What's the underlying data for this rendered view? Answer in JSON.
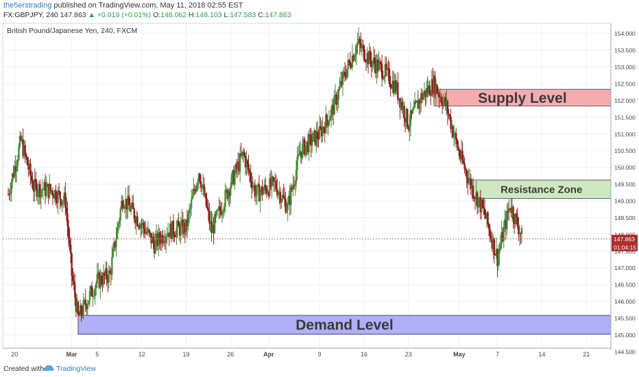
{
  "header": {
    "author": "the5erstrading",
    "published_text": "published on TradingView.com, May 11, 2018 02:55 EST",
    "symbol": "FX:GBPJPY, 240",
    "last": "147.863",
    "change": "+0.019 (+0.01%)",
    "open_label": "O:",
    "open": "148.062",
    "high_label": "H:",
    "high": "148.103",
    "low_label": "L:",
    "low": "147.583",
    "close_label": "C:",
    "close": "147.863"
  },
  "footer": {
    "created_with": "Created with",
    "brand": "TradingView"
  },
  "colors": {
    "up": "#4a8a3a",
    "down": "#8b1e1e",
    "supply_fill": "#f4a3a6",
    "resistance_fill": "#c9e5b9",
    "demand_fill": "#a9a6f5",
    "price_line": "#e0705c"
  },
  "chart_data": {
    "type": "candlestick",
    "title": "British Pound/Japanese Yen, 240, FXCM",
    "ylim": [
      144.6,
      154.3
    ],
    "y_ticks": [
      "154.000",
      "153.500",
      "153.000",
      "152.500",
      "152.000",
      "151.500",
      "151.000",
      "150.500",
      "150.000",
      "149.500",
      "149.000",
      "148.500",
      "148.000",
      "147.500",
      "147.000",
      "146.500",
      "146.000",
      "145.500",
      "145.000",
      "144.500"
    ],
    "x_ticks": [
      "20",
      "Mar",
      "5",
      "12",
      "19",
      "26",
      "Apr",
      "9",
      "16",
      "23",
      "May",
      "7",
      "14",
      "21"
    ],
    "current_price": "147.863",
    "countdown": "01:04:15",
    "zones": [
      {
        "label": "Supply Level",
        "top": 152.33,
        "bottom": 151.83,
        "x_start": "Apr 27",
        "x_end": "end"
      },
      {
        "label": "Resistance Zone",
        "top": 149.62,
        "bottom": 149.07,
        "x_start": "May 3",
        "x_end": "end"
      },
      {
        "label": "Demand Level",
        "top": 145.58,
        "bottom": 145.02,
        "x_start": "Mar 2",
        "x_end": "end"
      }
    ],
    "price_path": [
      {
        "date": "Feb 19",
        "price": 149.2
      },
      {
        "date": "Feb 21",
        "price": 150.8
      },
      {
        "date": "Feb 23",
        "price": 149.4
      },
      {
        "date": "Feb 26",
        "price": 149.3
      },
      {
        "date": "Feb 28",
        "price": 149.0
      },
      {
        "date": "Mar 1",
        "price": 146.8
      },
      {
        "date": "Mar 2",
        "price": 145.5
      },
      {
        "date": "Mar 5",
        "price": 146.6
      },
      {
        "date": "Mar 7",
        "price": 146.8
      },
      {
        "date": "Mar 9",
        "price": 149.1
      },
      {
        "date": "Mar 12",
        "price": 148.3
      },
      {
        "date": "Mar 14",
        "price": 147.7
      },
      {
        "date": "Mar 16",
        "price": 148.1
      },
      {
        "date": "Mar 19",
        "price": 148.2
      },
      {
        "date": "Mar 21",
        "price": 149.9
      },
      {
        "date": "Mar 23",
        "price": 148.1
      },
      {
        "date": "Mar 26",
        "price": 149.5
      },
      {
        "date": "Mar 28",
        "price": 150.4
      },
      {
        "date": "Mar 30",
        "price": 149.2
      },
      {
        "date": "Apr 2",
        "price": 149.5
      },
      {
        "date": "Apr 4",
        "price": 148.8
      },
      {
        "date": "Apr 6",
        "price": 150.5
      },
      {
        "date": "Apr 9",
        "price": 151.0
      },
      {
        "date": "Apr 11",
        "price": 151.7
      },
      {
        "date": "Apr 13",
        "price": 152.8
      },
      {
        "date": "Apr 15",
        "price": 153.7
      },
      {
        "date": "Apr 17",
        "price": 153.2
      },
      {
        "date": "Apr 19",
        "price": 152.9
      },
      {
        "date": "Apr 21",
        "price": 152.4
      },
      {
        "date": "Apr 23",
        "price": 151.3
      },
      {
        "date": "Apr 25",
        "price": 152.1
      },
      {
        "date": "Apr 27",
        "price": 152.5
      },
      {
        "date": "Apr 29",
        "price": 151.8
      },
      {
        "date": "May 1",
        "price": 150.4
      },
      {
        "date": "May 3",
        "price": 149.4
      },
      {
        "date": "May 5",
        "price": 148.6
      },
      {
        "date": "May 7",
        "price": 147.3
      },
      {
        "date": "May 9",
        "price": 148.9
      },
      {
        "date": "May 11",
        "price": 147.86
      }
    ]
  }
}
